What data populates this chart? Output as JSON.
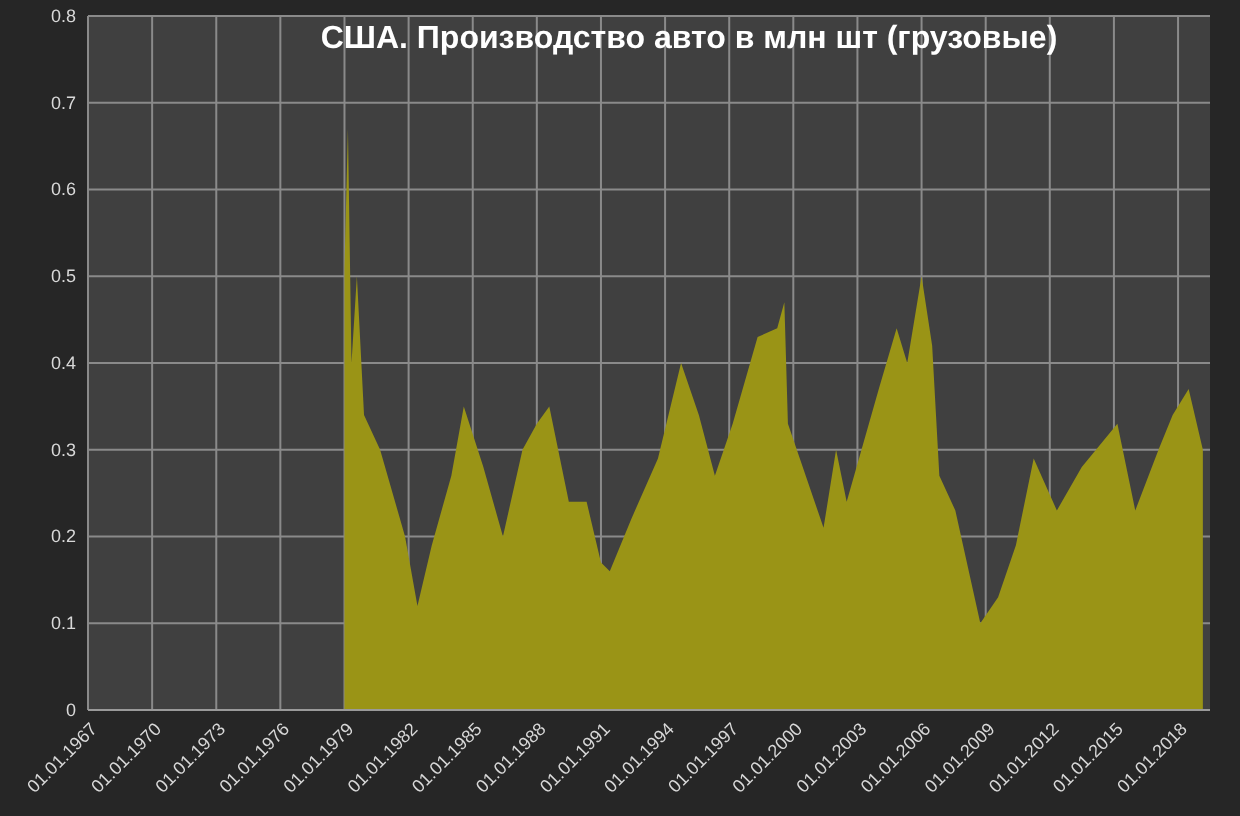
{
  "chart_data": {
    "type": "area",
    "title": "США. Производство авто в млн шт (грузовые)",
    "x": [
      "1979-01",
      "1979-03",
      "1979-05",
      "1979-08",
      "1979-12",
      "1980-09",
      "1981-11",
      "1982-06",
      "1983-02",
      "1984-01",
      "1984-08",
      "1985-07",
      "1986-06",
      "1987-05",
      "1988-01",
      "1988-08",
      "1989-07",
      "1990-05",
      "1991-01",
      "1991-06",
      "1992-06",
      "1993-09",
      "1994-10",
      "1995-08",
      "1996-05",
      "1997-03",
      "1998-05",
      "1999-04",
      "1999-08",
      "1999-10",
      "2001-06",
      "2002-01",
      "2002-07",
      "2004-01",
      "2004-11",
      "2005-05",
      "2006-01",
      "2006-07",
      "2006-11",
      "2007-08",
      "2008-10",
      "2009-08",
      "2010-06",
      "2011-04",
      "2012-05",
      "2013-07",
      "2015-03",
      "2016-01",
      "2017-02",
      "2017-10",
      "2018-07",
      "2019-03"
    ],
    "series": [
      {
        "color": "#9a9416",
        "values": [
          0.51,
          0.67,
          0.4,
          0.5,
          0.34,
          0.3,
          0.2,
          0.12,
          0.19,
          0.27,
          0.35,
          0.28,
          0.2,
          0.3,
          0.33,
          0.35,
          0.24,
          0.24,
          0.17,
          0.16,
          0.22,
          0.29,
          0.4,
          0.34,
          0.27,
          0.33,
          0.43,
          0.44,
          0.47,
          0.33,
          0.21,
          0.3,
          0.24,
          0.37,
          0.44,
          0.4,
          0.5,
          0.42,
          0.27,
          0.23,
          0.1,
          0.13,
          0.19,
          0.29,
          0.23,
          0.28,
          0.33,
          0.23,
          0.3,
          0.34,
          0.37,
          0.3
        ]
      }
    ],
    "xlim": [
      "1967-01-01",
      "2019-07-01"
    ],
    "xticks": [
      {
        "value": "1967-01-01",
        "label": "01.01.1967"
      },
      {
        "value": "1970-01-01",
        "label": "01.01.1970"
      },
      {
        "value": "1973-01-01",
        "label": "01.01.1973"
      },
      {
        "value": "1976-01-01",
        "label": "01.01.1976"
      },
      {
        "value": "1979-01-01",
        "label": "01.01.1979"
      },
      {
        "value": "1982-01-01",
        "label": "01.01.1982"
      },
      {
        "value": "1985-01-01",
        "label": "01.01.1985"
      },
      {
        "value": "1988-01-01",
        "label": "01.01.1988"
      },
      {
        "value": "1991-01-01",
        "label": "01.01.1991"
      },
      {
        "value": "1994-01-01",
        "label": "01.01.1994"
      },
      {
        "value": "1997-01-01",
        "label": "01.01.1997"
      },
      {
        "value": "2000-01-01",
        "label": "01.01.2000"
      },
      {
        "value": "2003-01-01",
        "label": "01.01.2003"
      },
      {
        "value": "2006-01-01",
        "label": "01.01.2006"
      },
      {
        "value": "2009-01-01",
        "label": "01.01.2009"
      },
      {
        "value": "2012-01-01",
        "label": "01.01.2012"
      },
      {
        "value": "2015-01-01",
        "label": "01.01.2015"
      },
      {
        "value": "2018-01-01",
        "label": "01.01.2018"
      }
    ],
    "ylim": [
      0,
      0.8
    ],
    "yticks": [
      0,
      0.1,
      0.2,
      0.3,
      0.4,
      0.5,
      0.6,
      0.7,
      0.8
    ],
    "grid": true
  }
}
